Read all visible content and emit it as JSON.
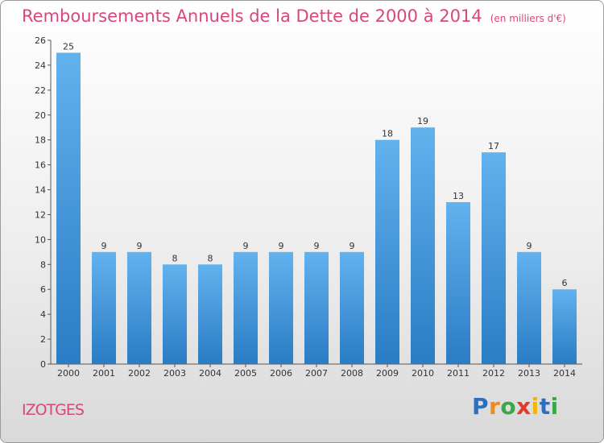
{
  "chart_data": {
    "type": "bar",
    "title": "Remboursements Annuels de la Dette de 2000 à 2014",
    "unit": "(en milliers d'€)",
    "categories": [
      "2000",
      "2001",
      "2002",
      "2003",
      "2004",
      "2005",
      "2006",
      "2007",
      "2008",
      "2009",
      "2010",
      "2011",
      "2012",
      "2013",
      "2014"
    ],
    "values": [
      25,
      9,
      9,
      8,
      8,
      9,
      9,
      9,
      9,
      18,
      19,
      13,
      17,
      9,
      6
    ],
    "ylim": [
      0,
      26
    ],
    "yticks": [
      0,
      2,
      4,
      6,
      8,
      10,
      12,
      14,
      16,
      18,
      20,
      22,
      24,
      26
    ],
    "grid": false,
    "bar_color": "#3b8fd6"
  },
  "commune": "IZOTGES",
  "brand": {
    "letters": [
      "P",
      "r",
      "o",
      "x",
      "i",
      "t",
      "i"
    ],
    "colors": [
      "#2b6fc4",
      "#f08a1c",
      "#3aa847",
      "#e23a2b",
      "#f5b400",
      "#2b6fc4",
      "#3aa847"
    ]
  }
}
